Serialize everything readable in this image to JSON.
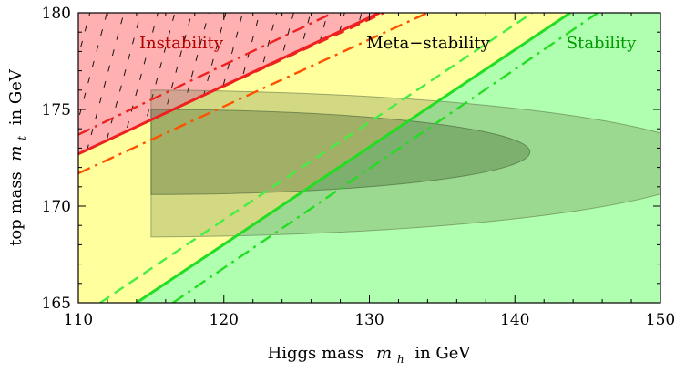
{
  "chart_data": {
    "type": "region-plot",
    "title": "",
    "xlabel": "Higgs mass",
    "xlabel_symbol": "m",
    "xlabel_sub": "h",
    "xlabel_unit": "in GeV",
    "ylabel": "top mass",
    "ylabel_symbol": "m",
    "ylabel_sub": "t",
    "ylabel_unit": "in GeV",
    "xlim": [
      110,
      150
    ],
    "ylim": [
      165,
      180
    ],
    "xticks": [
      110,
      120,
      130,
      140,
      150
    ],
    "yticks": [
      165,
      170,
      175,
      180
    ],
    "regions": [
      {
        "name": "Instability",
        "color": "#b20000",
        "fill": "#ffb0b0"
      },
      {
        "name": "Meta−stability",
        "color": "#000000",
        "fill": "#ffff9e"
      },
      {
        "name": "Stability",
        "color": "#009900",
        "fill": "#b0ffb0"
      }
    ],
    "boundaries": [
      {
        "name": "instability-central",
        "color": "#ee2020",
        "style": "solid",
        "points": [
          [
            110,
            172.7
          ],
          [
            130.7,
            180
          ]
        ]
      },
      {
        "name": "instability-upper",
        "color": "#ee2020",
        "style": "dashdot",
        "points": [
          [
            110,
            173.7
          ],
          [
            127.5,
            180
          ]
        ]
      },
      {
        "name": "instability-lower",
        "color": "#ff5000",
        "style": "dashdot",
        "points": [
          [
            110,
            171.7
          ],
          [
            134,
            180
          ]
        ]
      },
      {
        "name": "instability-dashed",
        "color": "#ee2020",
        "style": "dashed",
        "points": [
          [
            120,
            176.2
          ],
          [
            131,
            180
          ]
        ]
      },
      {
        "name": "stability-central",
        "color": "#22dd22",
        "style": "solid",
        "points": [
          [
            114,
            165
          ],
          [
            143.8,
            180
          ]
        ]
      },
      {
        "name": "stability-dashed",
        "color": "#44ee44",
        "style": "dashed",
        "points": [
          [
            111.5,
            165
          ],
          [
            141.2,
            180
          ]
        ]
      },
      {
        "name": "stability-dashdot",
        "color": "#22dd22",
        "style": "dashdot",
        "points": [
          [
            116.5,
            165
          ],
          [
            145.7,
            180
          ]
        ]
      }
    ],
    "ellipses": [
      {
        "name": "ellipse-outer",
        "x_start": 115,
        "x_end": 155,
        "y_center": 172.2,
        "y_halfwidth": 3.8
      },
      {
        "name": "ellipse-inner",
        "x_start": 115,
        "x_end": 141,
        "y_center": 172.8,
        "y_halfwidth": 2.2
      }
    ],
    "hatch_region": "Instability"
  }
}
